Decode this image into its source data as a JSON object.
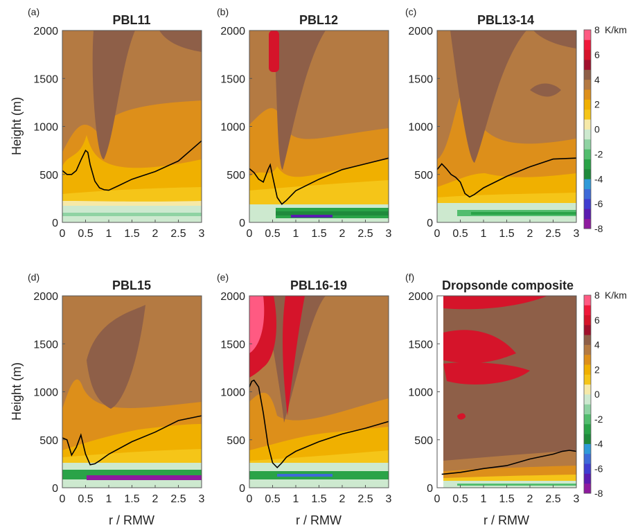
{
  "figure": {
    "shared_ylabel": "Height (m)",
    "shared_xlabel": "r / RMW",
    "colorbar_unit": "K/km",
    "colorbar_levels": [
      -8,
      -7,
      -6,
      -5,
      -4,
      -3,
      -2,
      -1,
      0,
      1,
      2,
      3,
      4,
      5,
      6,
      7,
      8
    ],
    "colorbar_tick_labels": [
      "8",
      "6",
      "4",
      "2",
      "0",
      "-2",
      "-4",
      "-6",
      "-8"
    ],
    "colorbar_colors": [
      "#8e1a9e",
      "#5b1bb0",
      "#3f3dd0",
      "#3d6ad8",
      "#2f9ad8",
      "#1f8a3c",
      "#2aa348",
      "#52bd6e",
      "#8fd3a3",
      "#cde9cf",
      "#f6e9a8",
      "#f5c518",
      "#f0b000",
      "#dd8f1a",
      "#b47a42",
      "#8e5f48",
      "#a0102c",
      "#d5142a",
      "#f0183a",
      "#ff5a82"
    ]
  },
  "chart_data": [
    {
      "panel": "(a)",
      "title": "PBL11",
      "type": "contour",
      "xlim": [
        0,
        3
      ],
      "ylim": [
        0,
        2000
      ],
      "xticks": [
        "0",
        "0.5",
        "1",
        "1.5",
        "2",
        "2.5",
        "3"
      ],
      "yticks": [
        "0",
        "500",
        "1000",
        "1500",
        "2000"
      ],
      "pbl_height_line": {
        "x": [
          0,
          0.1,
          0.2,
          0.3,
          0.4,
          0.5,
          0.55,
          0.6,
          0.7,
          0.8,
          0.9,
          1.0,
          1.2,
          1.5,
          2.0,
          2.5,
          3.0
        ],
        "y": [
          540,
          500,
          500,
          540,
          650,
          750,
          730,
          600,
          430,
          360,
          340,
          335,
          380,
          450,
          530,
          640,
          850
        ]
      }
    },
    {
      "panel": "(b)",
      "title": "PBL12",
      "type": "contour",
      "xlim": [
        0,
        3
      ],
      "ylim": [
        0,
        2000
      ],
      "xticks": [
        "0",
        "0.5",
        "1",
        "1.5",
        "2",
        "2.5",
        "3"
      ],
      "yticks": [
        "0",
        "500",
        "1000",
        "1500",
        "2000"
      ],
      "pbl_height_line": {
        "x": [
          0,
          0.1,
          0.2,
          0.3,
          0.4,
          0.45,
          0.5,
          0.6,
          0.7,
          0.8,
          1.0,
          1.5,
          2.0,
          2.5,
          3.0
        ],
        "y": [
          560,
          520,
          450,
          420,
          550,
          600,
          480,
          260,
          190,
          230,
          330,
          450,
          550,
          610,
          670
        ]
      }
    },
    {
      "panel": "(c)",
      "title": "PBL13-14",
      "type": "contour",
      "xlim": [
        0,
        3
      ],
      "ylim": [
        0,
        2000
      ],
      "xticks": [
        "0",
        "0.5",
        "1",
        "1.5",
        "2",
        "2.5",
        "3"
      ],
      "yticks": [
        "0",
        "500",
        "1000",
        "1500",
        "2000"
      ],
      "pbl_height_line": {
        "x": [
          0,
          0.1,
          0.2,
          0.3,
          0.4,
          0.5,
          0.6,
          0.7,
          0.8,
          1.0,
          1.5,
          2.0,
          2.5,
          3.0
        ],
        "y": [
          550,
          610,
          560,
          500,
          470,
          420,
          300,
          265,
          290,
          360,
          480,
          580,
          660,
          670
        ]
      }
    },
    {
      "panel": "(d)",
      "title": "PBL15",
      "type": "contour",
      "xlim": [
        0,
        3
      ],
      "ylim": [
        0,
        2000
      ],
      "xticks": [
        "0",
        "0.5",
        "1",
        "1.5",
        "2",
        "2.5",
        "3"
      ],
      "yticks": [
        "0",
        "500",
        "1000",
        "1500",
        "2000"
      ],
      "pbl_height_line": {
        "x": [
          0,
          0.1,
          0.2,
          0.3,
          0.4,
          0.5,
          0.6,
          0.7,
          0.8,
          1.0,
          1.5,
          2.0,
          2.5,
          3.0
        ],
        "y": [
          520,
          500,
          340,
          420,
          550,
          350,
          240,
          250,
          280,
          350,
          480,
          580,
          700,
          750
        ]
      }
    },
    {
      "panel": "(e)",
      "title": "PBL16-19",
      "type": "contour",
      "xlim": [
        0,
        3
      ],
      "ylim": [
        0,
        2000
      ],
      "xticks": [
        "0",
        "0.5",
        "1",
        "1.5",
        "2",
        "2.5",
        "3"
      ],
      "yticks": [
        "0",
        "500",
        "1000",
        "1500",
        "2000"
      ],
      "pbl_height_line": {
        "x": [
          0,
          0.05,
          0.1,
          0.2,
          0.3,
          0.4,
          0.5,
          0.6,
          0.7,
          0.8,
          1.0,
          1.5,
          2.0,
          2.5,
          3.0
        ],
        "y": [
          1050,
          1110,
          1120,
          1050,
          780,
          450,
          260,
          210,
          260,
          320,
          380,
          480,
          560,
          620,
          690
        ]
      }
    },
    {
      "panel": "(f)",
      "title": "Dropsonde composite",
      "type": "contour",
      "xlim": [
        0,
        3
      ],
      "ylim": [
        0,
        2000
      ],
      "xticks": [
        "0",
        "0.5",
        "1",
        "1.5",
        "2",
        "2.5",
        "3"
      ],
      "yticks": [
        "0",
        "500",
        "1000",
        "1500",
        "2000"
      ],
      "pbl_height_line": {
        "x": [
          0.1,
          0.5,
          1.0,
          1.5,
          2.0,
          2.5,
          2.7,
          2.85,
          3.0
        ],
        "y": [
          140,
          160,
          200,
          230,
          300,
          350,
          380,
          390,
          380
        ]
      }
    }
  ]
}
